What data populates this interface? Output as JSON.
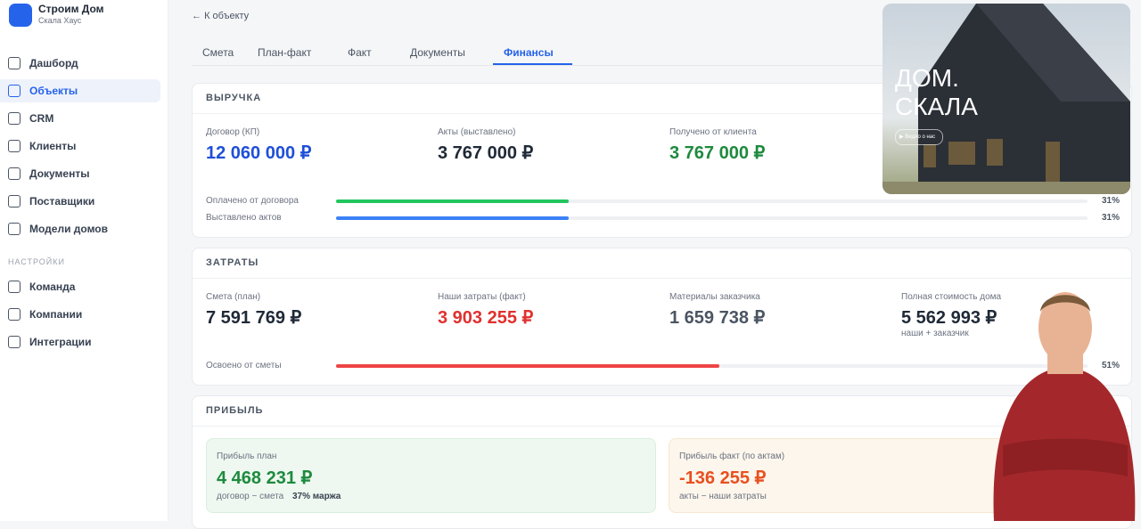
{
  "sidebar": {
    "brand": {
      "title": "Строим Дом",
      "subtitle": "Скала Хаус"
    },
    "nav": [
      "Дашборд",
      "Объекты",
      "CRM",
      "Клиенты",
      "Документы",
      "Поставщики",
      "Модели домов"
    ],
    "section": "НАСТРОЙКИ",
    "settings": [
      "Команда",
      "Компании",
      "Интеграции"
    ]
  },
  "back": "К объекту",
  "tabs": [
    "Смета",
    "План-факт",
    "Факт",
    "Документы",
    "Финансы"
  ],
  "revenue": {
    "title": "ВЫРУЧКА",
    "metrics": [
      {
        "label": "Договор (КП)",
        "value": "12 060 000 ₽"
      },
      {
        "label": "Акты (выставлено)",
        "value": "3 767 000 ₽"
      },
      {
        "label": "Получено от клиента",
        "value": "3 767 000 ₽"
      }
    ],
    "progress": [
      {
        "label": "Оплачено от договора",
        "value": 31,
        "value_label": "31%"
      },
      {
        "label": "Выставлено актов",
        "value": 31,
        "value_label": "31%"
      }
    ]
  },
  "costs": {
    "title": "ЗАТРАТЫ",
    "metrics": [
      {
        "label": "Смета (план)",
        "value": "7 591 769 ₽"
      },
      {
        "label": "Наши затраты (факт)",
        "value": "3 903 255 ₽"
      },
      {
        "label": "Материалы заказчика",
        "value": "1 659 738 ₽"
      },
      {
        "label": "Полная стоимость дома",
        "value": "5 562 993 ₽",
        "note": "наши + заказчик"
      }
    ],
    "progress": [
      {
        "label": "Освоено от сметы",
        "value": 51,
        "value_label": "51%"
      }
    ]
  },
  "profit": {
    "title": "ПРИБЫЛЬ",
    "cards": [
      {
        "label": "Прибыль план",
        "value": "4 468 231 ₽",
        "note": "договор − смета",
        "extra": "37% маржа"
      },
      {
        "label": "Прибыль факт (по актам)",
        "value": "-136 255 ₽",
        "note": "акты − наши затраты"
      }
    ]
  },
  "video": {
    "title": [
      "ДОМ.",
      "СКАЛА"
    ],
    "button": "Видео о нас"
  }
}
